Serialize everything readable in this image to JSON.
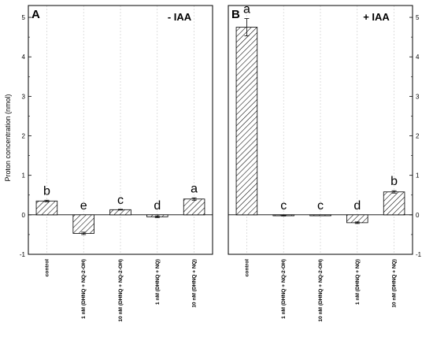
{
  "ylabel": "Proton concentration (nmol)",
  "yticks": [
    -1,
    0,
    1,
    2,
    3,
    4,
    5
  ],
  "colors": {
    "bar_fill": "#ffffff",
    "bar_hatch": "#000000",
    "axis": "#000000",
    "grid": "#c8c8c8"
  },
  "chart_data": [
    {
      "type": "bar",
      "panel_label": "A",
      "condition_label": "- IAA",
      "categories": [
        "control",
        "1 nM (DHNQ + NQ-2-OH)",
        "10 nM (DHNQ + NQ-2-OH)",
        "1 nM (DHNQ + NQ)",
        "10 nM (DHNQ + NQ)"
      ],
      "values": [
        0.35,
        -0.47,
        0.13,
        -0.05,
        0.4
      ],
      "errors": [
        0.02,
        0.03,
        0.01,
        0.02,
        0.03
      ],
      "significance_letters": [
        "b",
        "e",
        "c",
        "d",
        "a"
      ],
      "ylim": [
        -1,
        5.3
      ],
      "ylabel": "Proton concentration (nmol)",
      "grid": true
    },
    {
      "type": "bar",
      "panel_label": "B",
      "condition_label": "+ IAA",
      "categories": [
        "control",
        "1 nM (DHNQ + NQ-2-OH)",
        "10 nM (DHNQ + NQ-2-OH)",
        "1 nM (DHNQ + NQ)",
        "10 nM (DHNQ + NQ)"
      ],
      "values": [
        4.75,
        -0.02,
        0.0,
        -0.2,
        0.58
      ],
      "errors": [
        0.22,
        0.01,
        0.0,
        0.02,
        0.03
      ],
      "significance_letters": [
        "a",
        "c",
        "c",
        "d",
        "b"
      ],
      "ylim": [
        -1,
        5.3
      ],
      "grid": true
    }
  ]
}
